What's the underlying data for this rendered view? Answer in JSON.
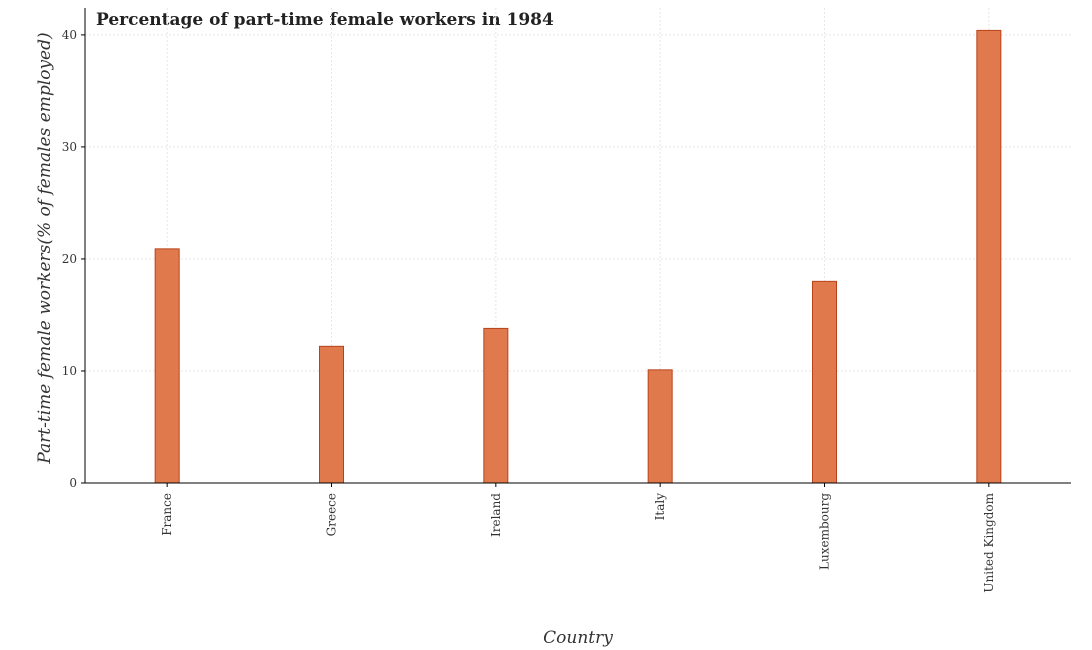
{
  "chart_data": {
    "type": "bar",
    "title": "Percentage of part-time female workers in 1984",
    "xlabel": "Country",
    "ylabel": "Part-time female workers(% of females employed)",
    "categories": [
      "France",
      "Greece",
      "Ireland",
      "Italy",
      "Luxembourg",
      "United Kingdom"
    ],
    "values": [
      20.9,
      12.2,
      13.8,
      10.1,
      18.0,
      40.4
    ],
    "ylim": [
      0,
      42.4
    ],
    "yticks": [
      0,
      10,
      20,
      30,
      40
    ],
    "grid": true,
    "bar_color": "#e07a4c",
    "bar_edge_color": "#b8431a"
  }
}
